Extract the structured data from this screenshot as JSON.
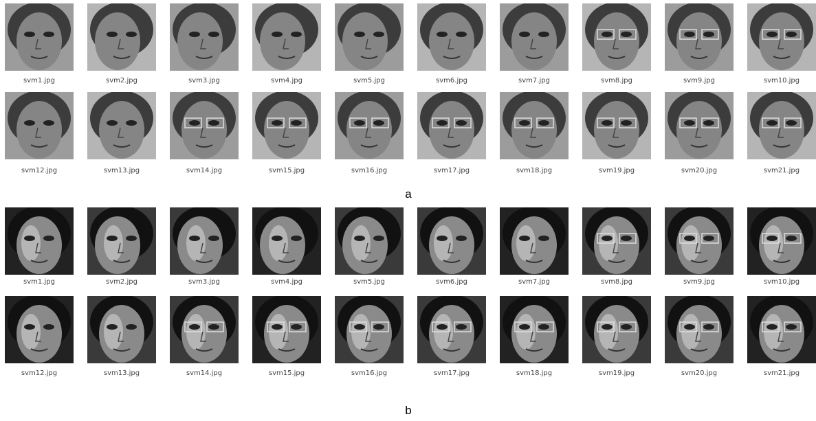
{
  "panels": [
    {
      "label": "a",
      "rows": [
        [
          "svm1.jpg",
          "svm2.jpg",
          "svm3.jpg",
          "svm4.jpg",
          "svm5.jpg",
          "svm6.jpg",
          "svm7.jpg",
          "svm8.jpg",
          "svm9.jpg",
          "svm10.jpg"
        ],
        [
          "svm12.jpg",
          "svm13.jpg",
          "svm14.jpg",
          "svm15.jpg",
          "svm16.jpg",
          "svm17.jpg",
          "svm18.jpg",
          "svm19.jpg",
          "svm20.jpg",
          "svm21.jpg"
        ]
      ]
    },
    {
      "label": "b",
      "rows": [
        [
          "svm1.jpg",
          "svm2.jpg",
          "svm3.jpg",
          "svm4.jpg",
          "svm5.jpg",
          "svm6.jpg",
          "svm7.jpg",
          "svm8.jpg",
          "svm9.jpg",
          "svm10.jpg"
        ],
        [
          "svm12.jpg",
          "svm13.jpg",
          "svm14.jpg",
          "svm15.jpg",
          "svm16.jpg",
          "svm17.jpg",
          "svm18.jpg",
          "svm19.jpg",
          "svm20.jpg",
          "svm21.jpg"
        ]
      ]
    }
  ]
}
